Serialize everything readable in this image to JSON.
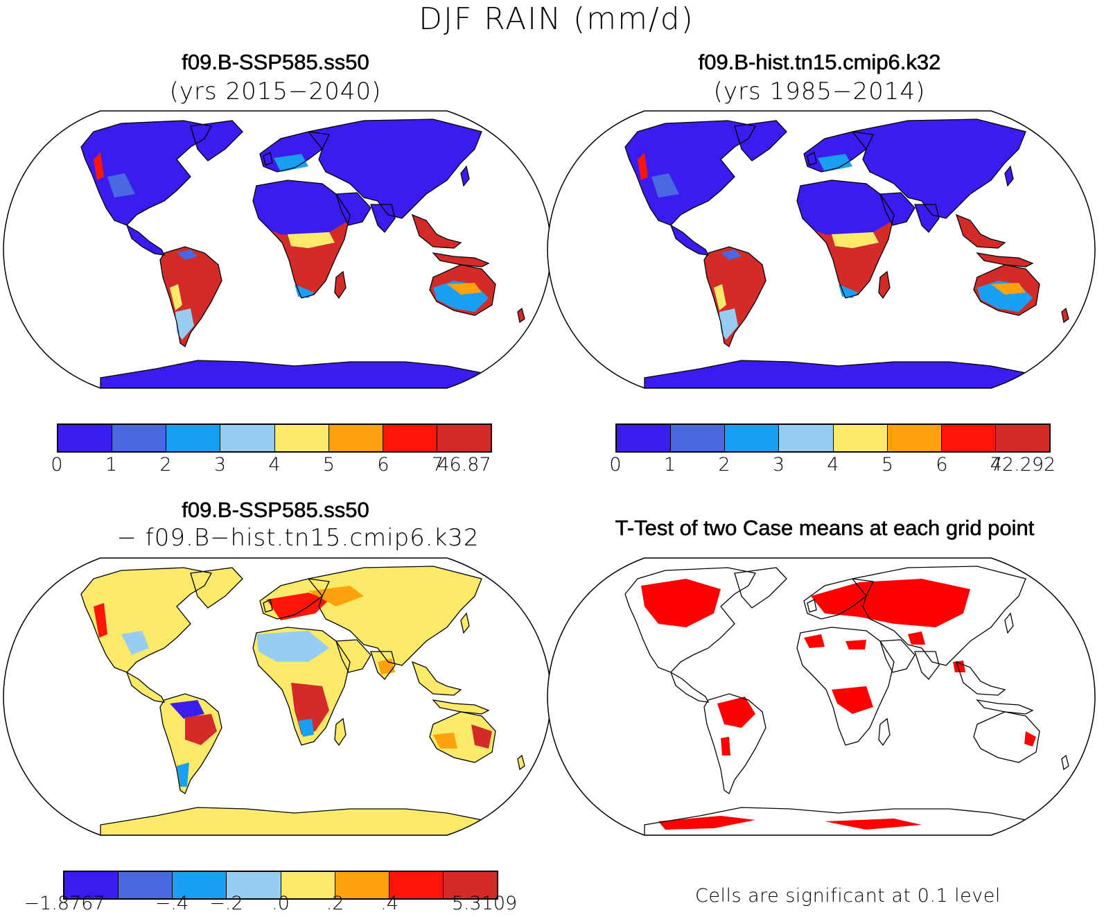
{
  "figure_title": "DJF RAIN (mm/d)",
  "panels": {
    "top_left": {
      "title": "f09.B-SSP585.ss50",
      "subtitle": "(yrs 2015−2040)",
      "colorbar_labels": [
        "0",
        "1",
        "2",
        "3",
        "4",
        "5",
        "6",
        "7",
        "46.87"
      ]
    },
    "top_right": {
      "title": "f09.B-hist.tn15.cmip6.k32",
      "subtitle": "(yrs 1985−2014)",
      "colorbar_labels": [
        "0",
        "1",
        "2",
        "3",
        "4",
        "5",
        "6",
        "7",
        "42.292"
      ]
    },
    "bottom_left": {
      "title": "f09.B-SSP585.ss50",
      "subtitle": "− f09.B−hist.tn15.cmip6.k32",
      "colorbar_labels": [
        "−1.8767",
        "−.4",
        "−.2",
        ".0",
        ".2",
        ".4",
        "5.3109"
      ]
    },
    "bottom_right": {
      "title": "T-Test of two Case means at each grid point",
      "note": "Cells are significant at 0.1 level"
    }
  },
  "colors": {
    "rain_levels": [
      "#3b1cf0",
      "#4a68e0",
      "#1aa0f2",
      "#96cdf0",
      "#fbea6a",
      "#ffa10a",
      "#ff1508",
      "#d32a2a"
    ],
    "diff_levels": [
      "#3b1cf0",
      "#4a68e0",
      "#1aa0f2",
      "#96cdf0",
      "#fbea6a",
      "#ffa10a",
      "#ff1508",
      "#d32a2a"
    ],
    "significant": "#ff0000",
    "coastline": "#000000"
  },
  "chart_data": {
    "type": "heatmap",
    "title": "DJF RAIN (mm/d)",
    "projection": "Robinson",
    "colorbar_rain_top_left": [
      0,
      1,
      2,
      3,
      4,
      5,
      6,
      7,
      46.87
    ],
    "colorbar_rain_top_right": [
      0,
      1,
      2,
      3,
      4,
      5,
      6,
      7,
      42.292
    ],
    "colorbar_difference": [
      -1.8767,
      -0.4,
      -0.2,
      0.0,
      0.2,
      0.4,
      5.3109
    ],
    "significance_level": 0.1
  }
}
